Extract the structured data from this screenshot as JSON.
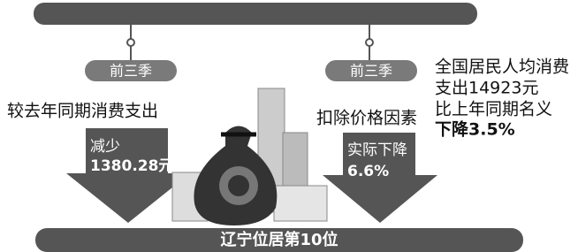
{
  "top_bar": {
    "text": null
  },
  "left": {
    "pill": "前三季",
    "caption": "较去年同期消费支出",
    "arrow_label": "减少",
    "arrow_value": "1380.28元"
  },
  "right": {
    "pill": "前三季",
    "caption": "扣除价格因素",
    "arrow_label": "实际下降",
    "arrow_value": "6.6%",
    "summary": [
      "全国居民人均消费",
      "支出14923元",
      "比上年同期名义",
      "下降3.5%"
    ]
  },
  "bottom_bar": {
    "text": "辽宁位居第10位"
  }
}
